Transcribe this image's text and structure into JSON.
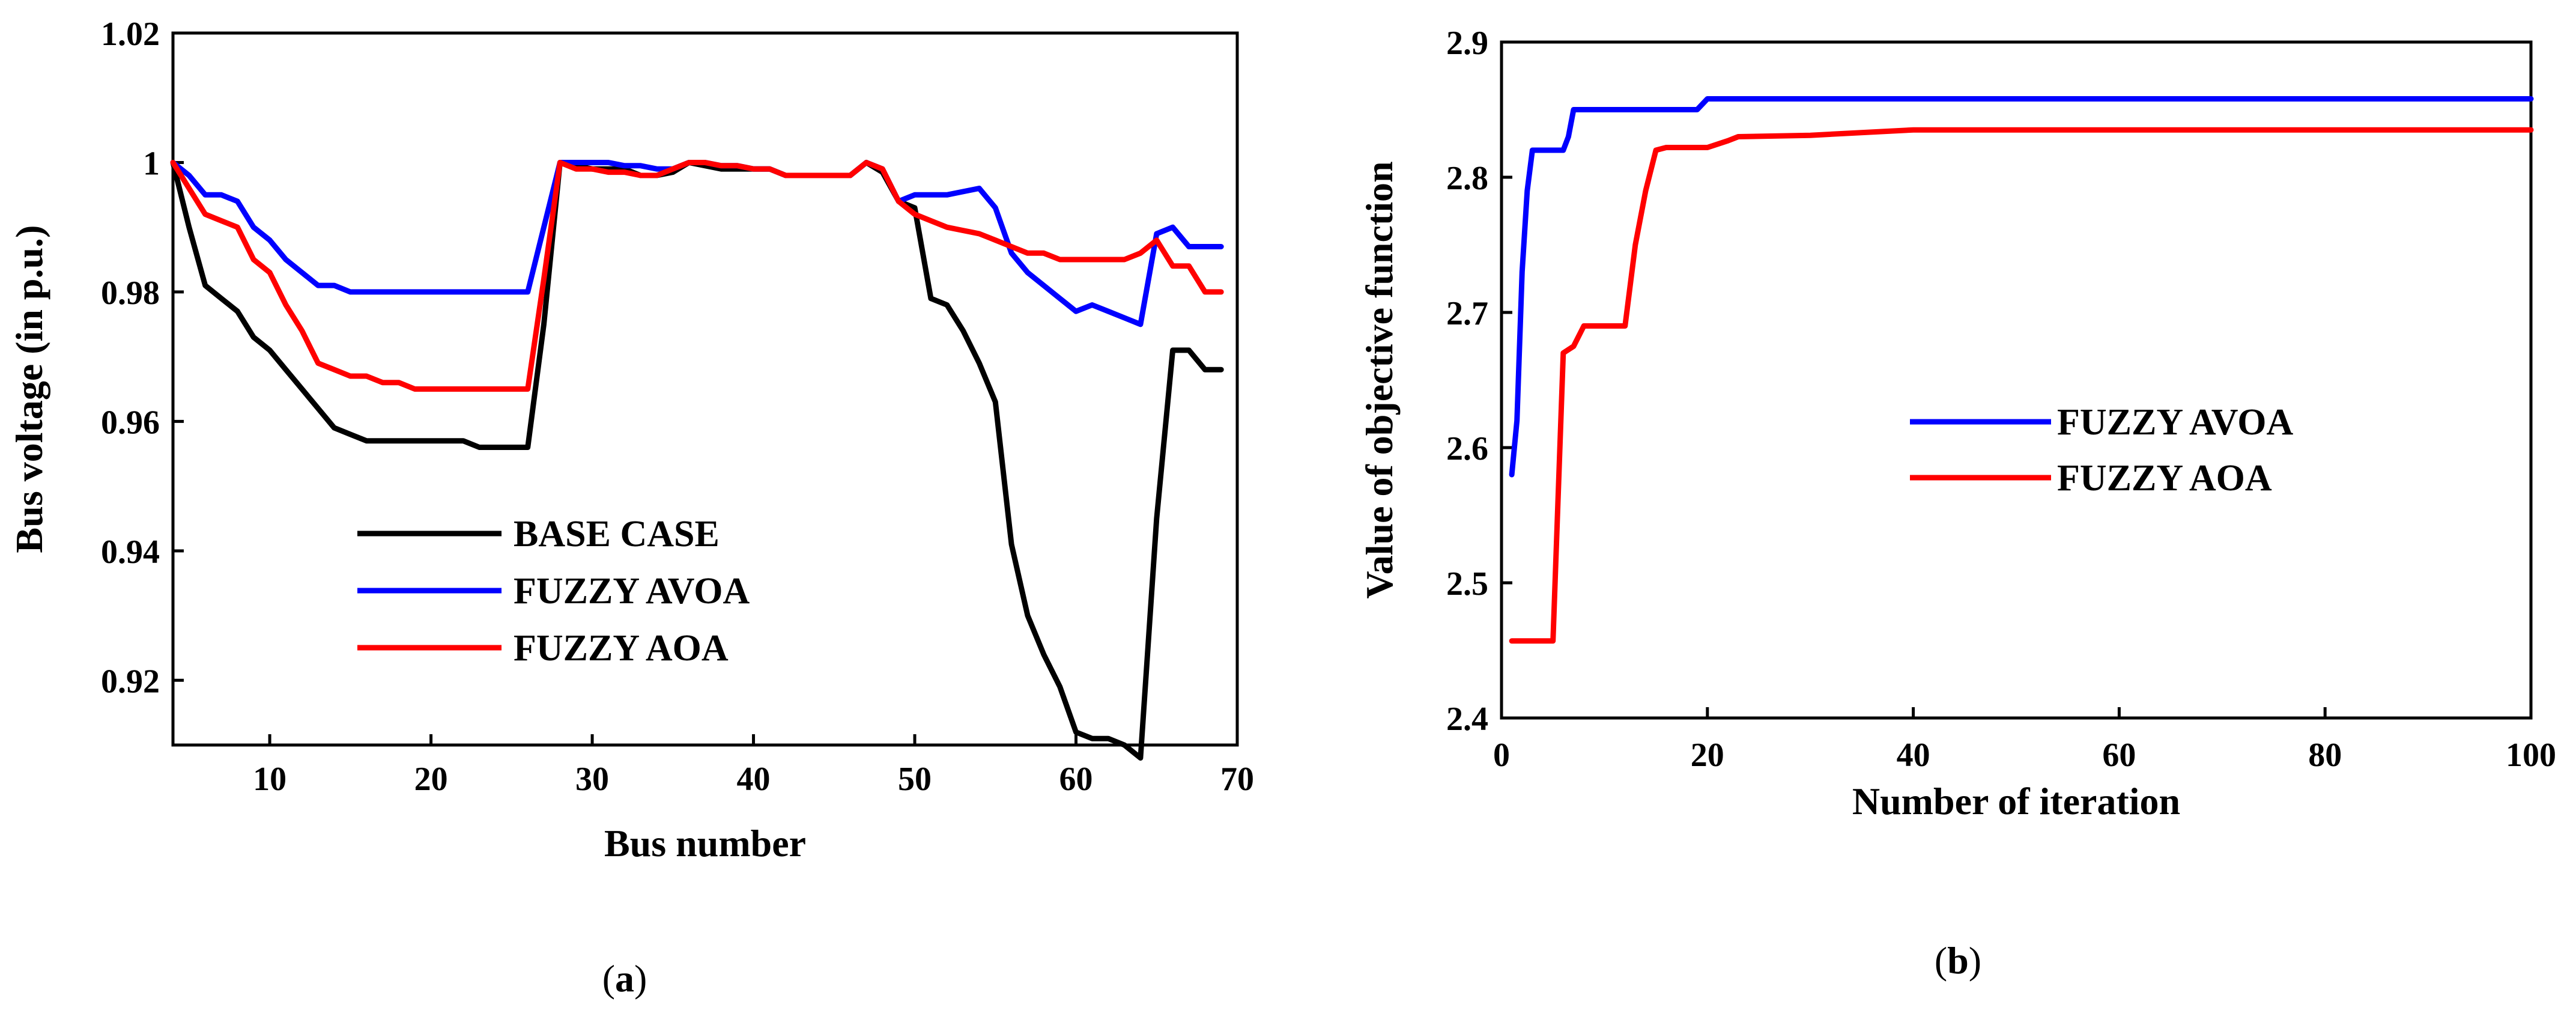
{
  "chart_data": [
    {
      "id": "a",
      "panel_label": "a",
      "type": "line",
      "xlabel": "Bus number",
      "ylabel": "Bus voltage (in p.u.)",
      "xlim": [
        4,
        70
      ],
      "ylim": [
        0.91,
        1.02
      ],
      "xticks": [
        10,
        20,
        30,
        40,
        50,
        60,
        70
      ],
      "yticks": [
        0.92,
        0.94,
        0.96,
        0.98,
        1,
        1.02
      ],
      "ytick_labels": [
        "0.92",
        "0.94",
        "0.96",
        "0.98",
        "1",
        "1.02"
      ],
      "legend_position": "lower-middle",
      "series": [
        {
          "name": "BASE CASE",
          "color": "#000000",
          "x": [
            4,
            5,
            6,
            7,
            8,
            9,
            10,
            11,
            12,
            13,
            14,
            15,
            16,
            17,
            18,
            19,
            20,
            21,
            22,
            23,
            24,
            25,
            26,
            27,
            28,
            29,
            30,
            31,
            32,
            33,
            34,
            35,
            36,
            37,
            38,
            39,
            40,
            41,
            42,
            43,
            44,
            45,
            46,
            47,
            48,
            49,
            50,
            51,
            52,
            53,
            54,
            55,
            56,
            57,
            58,
            59,
            60,
            61,
            62,
            63,
            64,
            65,
            66,
            67,
            68,
            69
          ],
          "values": [
            1.0,
            0.99,
            0.981,
            0.979,
            0.977,
            0.973,
            0.971,
            0.968,
            0.965,
            0.962,
            0.959,
            0.958,
            0.957,
            0.957,
            0.957,
            0.957,
            0.957,
            0.957,
            0.957,
            0.956,
            0.956,
            0.956,
            0.956,
            0.975,
            1.0,
            0.9995,
            0.999,
            0.999,
            0.999,
            0.998,
            0.998,
            0.9985,
            1.0,
            0.9995,
            0.999,
            0.999,
            0.999,
            0.999,
            0.998,
            0.998,
            0.998,
            0.998,
            0.998,
            1.0,
            0.9985,
            0.994,
            0.993,
            0.979,
            0.978,
            0.974,
            0.969,
            0.963,
            0.941,
            0.93,
            0.924,
            0.919,
            0.912,
            0.911,
            0.911,
            0.91,
            0.908,
            0.945,
            0.971,
            0.971,
            0.968,
            0.968
          ]
        },
        {
          "name": "FUZZY AVOA",
          "color": "#0000ff",
          "x": [
            4,
            5,
            6,
            7,
            8,
            9,
            10,
            11,
            12,
            13,
            14,
            15,
            16,
            17,
            18,
            19,
            20,
            21,
            22,
            23,
            24,
            25,
            26,
            27,
            28,
            29,
            30,
            31,
            32,
            33,
            34,
            35,
            36,
            37,
            38,
            39,
            40,
            41,
            42,
            43,
            44,
            45,
            46,
            47,
            48,
            49,
            50,
            51,
            52,
            53,
            54,
            55,
            56,
            57,
            58,
            59,
            60,
            61,
            62,
            63,
            64,
            65,
            66,
            67,
            68,
            69
          ],
          "values": [
            1.0,
            0.998,
            0.995,
            0.995,
            0.994,
            0.99,
            0.988,
            0.985,
            0.983,
            0.981,
            0.981,
            0.98,
            0.98,
            0.98,
            0.98,
            0.98,
            0.98,
            0.98,
            0.98,
            0.98,
            0.98,
            0.98,
            0.98,
            0.99,
            1.0,
            1.0,
            1.0,
            1.0,
            0.9995,
            0.9995,
            0.999,
            0.999,
            1.0,
            1.0,
            0.9995,
            0.9995,
            0.999,
            0.999,
            0.998,
            0.998,
            0.998,
            0.998,
            0.998,
            1.0,
            0.999,
            0.994,
            0.995,
            0.995,
            0.995,
            0.9955,
            0.996,
            0.993,
            0.986,
            0.983,
            0.981,
            0.979,
            0.977,
            0.978,
            0.977,
            0.976,
            0.975,
            0.989,
            0.99,
            0.987,
            0.987,
            0.987
          ]
        },
        {
          "name": "FUZZY AOA",
          "color": "#ff0000",
          "x": [
            4,
            5,
            6,
            7,
            8,
            9,
            10,
            11,
            12,
            13,
            14,
            15,
            16,
            17,
            18,
            19,
            20,
            21,
            22,
            23,
            24,
            25,
            26,
            27,
            28,
            29,
            30,
            31,
            32,
            33,
            34,
            35,
            36,
            37,
            38,
            39,
            40,
            41,
            42,
            43,
            44,
            45,
            46,
            47,
            48,
            49,
            50,
            51,
            52,
            53,
            54,
            55,
            56,
            57,
            58,
            59,
            60,
            61,
            62,
            63,
            64,
            65,
            66,
            67,
            68,
            69
          ],
          "values": [
            1.0,
            0.996,
            0.992,
            0.991,
            0.99,
            0.985,
            0.983,
            0.978,
            0.974,
            0.969,
            0.968,
            0.967,
            0.967,
            0.966,
            0.966,
            0.965,
            0.965,
            0.965,
            0.965,
            0.965,
            0.965,
            0.965,
            0.965,
            0.982,
            1.0,
            0.999,
            0.999,
            0.9985,
            0.9985,
            0.998,
            0.998,
            0.999,
            1.0,
            1.0,
            0.9995,
            0.9995,
            0.999,
            0.999,
            0.998,
            0.998,
            0.998,
            0.998,
            0.998,
            1.0,
            0.999,
            0.994,
            0.992,
            0.991,
            0.99,
            0.9895,
            0.989,
            0.988,
            0.987,
            0.986,
            0.986,
            0.985,
            0.985,
            0.985,
            0.985,
            0.985,
            0.986,
            0.988,
            0.984,
            0.984,
            0.98,
            0.98
          ]
        }
      ]
    },
    {
      "id": "b",
      "panel_label": "b",
      "type": "line",
      "xlabel": "Number of iteration",
      "ylabel": "Value of objective function",
      "xlim": [
        0,
        100
      ],
      "ylim": [
        2.4,
        2.9
      ],
      "xticks": [
        0,
        20,
        40,
        60,
        80,
        100
      ],
      "yticks": [
        2.4,
        2.5,
        2.6,
        2.7,
        2.8,
        2.9
      ],
      "ytick_labels": [
        "2.4",
        "2.5",
        "2.6",
        "2.7",
        "2.8",
        "2.9"
      ],
      "legend_position": "middle",
      "series": [
        {
          "name": "FUZZY AVOA",
          "color": "#0000ff",
          "x": [
            1,
            1.5,
            2,
            2.5,
            3,
            4,
            5,
            6,
            6.5,
            7,
            8,
            10,
            19,
            20,
            25,
            40,
            60,
            80,
            100
          ],
          "values": [
            2.58,
            2.62,
            2.73,
            2.79,
            2.82,
            2.82,
            2.82,
            2.82,
            2.83,
            2.85,
            2.85,
            2.85,
            2.85,
            2.858,
            2.858,
            2.858,
            2.858,
            2.858,
            2.858
          ]
        },
        {
          "name": "FUZZY AOA",
          "color": "#ff0000",
          "x": [
            1,
            5,
            6,
            7,
            8,
            9,
            10,
            11,
            12,
            13,
            14,
            15,
            16,
            17,
            20,
            22,
            23,
            30,
            40,
            60,
            80,
            100
          ],
          "values": [
            2.457,
            2.457,
            2.67,
            2.675,
            2.69,
            2.69,
            2.69,
            2.69,
            2.69,
            2.75,
            2.79,
            2.82,
            2.822,
            2.822,
            2.822,
            2.827,
            2.83,
            2.831,
            2.835,
            2.835,
            2.835,
            2.835
          ]
        }
      ]
    }
  ]
}
